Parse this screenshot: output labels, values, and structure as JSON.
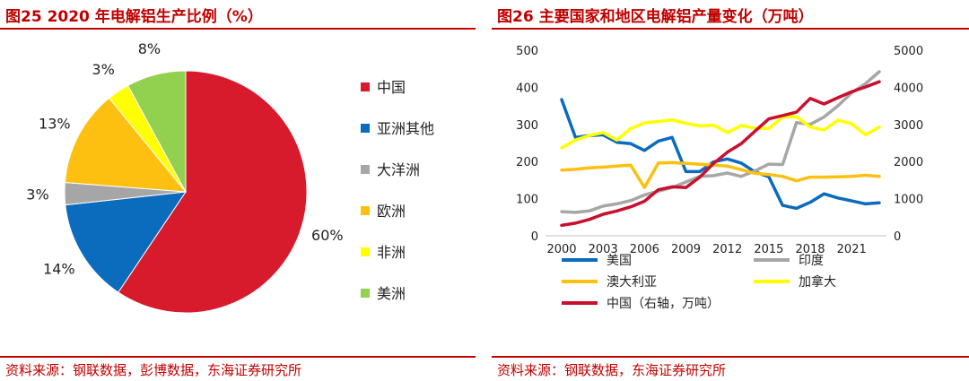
{
  "left": {
    "title": "图25  2020 年电解铝生产比例（%）",
    "source": "资料来源：钢联数据，彭博数据，东海证券研究所"
  },
  "right": {
    "title": "图26  主要国家和地区电解铝产量变化（万吨）",
    "source": "资料来源：钢联数据，东海证券研究所"
  },
  "chart_data": [
    {
      "type": "pie",
      "title": "2020 年电解铝生产比例（%）",
      "legend_position": "right",
      "slices": [
        {
          "name": "中国",
          "value": 60,
          "label": "60%",
          "color": "#d71a2c"
        },
        {
          "name": "亚洲其他",
          "value": 14,
          "label": "14%",
          "color": "#0b6bbd"
        },
        {
          "name": "大洋洲",
          "value": 3,
          "label": "3%",
          "color": "#a6a6a6"
        },
        {
          "name": "欧洲",
          "value": 13,
          "label": "13%",
          "color": "#fdc010"
        },
        {
          "name": "非洲",
          "value": 3,
          "label": "3%",
          "color": "#ffff00"
        },
        {
          "name": "美洲",
          "value": 8,
          "label": "8%",
          "color": "#92d050"
        }
      ]
    },
    {
      "type": "line",
      "title": "主要国家和地区电解铝产量变化（万吨）",
      "x": [
        2000,
        2001,
        2002,
        2003,
        2004,
        2005,
        2006,
        2007,
        2008,
        2009,
        2010,
        2011,
        2012,
        2013,
        2014,
        2015,
        2016,
        2017,
        2018,
        2019,
        2020,
        2021,
        2022,
        2023
      ],
      "xticks": [
        "2000",
        "2003",
        "2006",
        "2009",
        "2012",
        "2015",
        "2018",
        "2021"
      ],
      "y_left_ticks": [
        "0",
        "100",
        "200",
        "300",
        "400",
        "500"
      ],
      "y_right_ticks": [
        "0",
        "1000",
        "2000",
        "3000",
        "4000",
        "5000"
      ],
      "ylim_left": [
        0,
        500
      ],
      "ylim_right": [
        0,
        5000
      ],
      "legend_position": "bottom",
      "series": [
        {
          "name": "美国",
          "axis": "left",
          "color": "#0b6bbd",
          "values": [
            367,
            265,
            270,
            272,
            252,
            248,
            230,
            255,
            265,
            173,
            173,
            199,
            207,
            196,
            172,
            159,
            82,
            74,
            90,
            113,
            102,
            94,
            86,
            89
          ]
        },
        {
          "name": "印度",
          "axis": "left",
          "color": "#a6a6a6",
          "values": [
            65,
            63,
            67,
            80,
            86,
            95,
            110,
            120,
            130,
            145,
            160,
            162,
            169,
            160,
            175,
            193,
            192,
            305,
            300,
            320,
            350,
            385,
            410,
            442
          ]
        },
        {
          "name": "澳大利亚",
          "axis": "left",
          "color": "#fdc010",
          "values": [
            177,
            179,
            183,
            185,
            188,
            190,
            130,
            196,
            197,
            195,
            193,
            190,
            188,
            178,
            168,
            165,
            160,
            148,
            158,
            158,
            159,
            160,
            163,
            160
          ]
        },
        {
          "name": "加拿大",
          "axis": "left",
          "color": "#ffff00",
          "values": [
            237,
            258,
            270,
            278,
            258,
            289,
            304,
            308,
            312,
            303,
            296,
            298,
            278,
            297,
            290,
            289,
            320,
            321,
            293,
            285,
            311,
            302,
            272,
            293
          ]
        },
        {
          "name": "中国（右轴，万吨）",
          "axis": "right",
          "color": "#c8102e",
          "values": [
            280,
            340,
            440,
            580,
            670,
            780,
            930,
            1240,
            1320,
            1300,
            1580,
            1950,
            2250,
            2480,
            2820,
            3150,
            3240,
            3330,
            3700,
            3550,
            3720,
            3880,
            4010,
            4150
          ]
        }
      ]
    }
  ]
}
